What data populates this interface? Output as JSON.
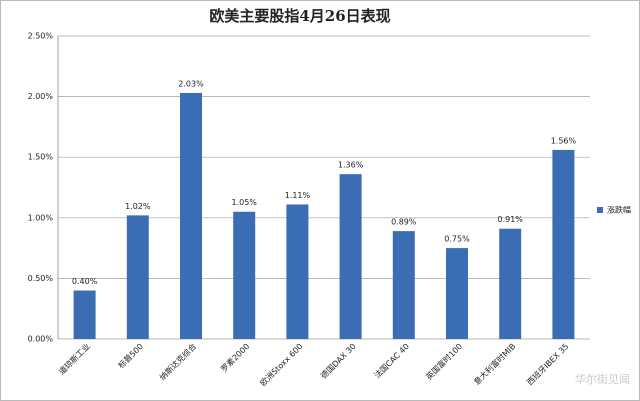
{
  "chart_data": {
    "type": "bar",
    "title": "欧美主要股指4月26日表现",
    "categories": [
      "道琼斯工业",
      "标普500",
      "纳斯达克综合",
      "罗素2000",
      "欧洲Stoxx 600",
      "德国DAX 30",
      "法国CAC 40",
      "英国富时100",
      "意大利富时MIB",
      "西班牙IBEX 35"
    ],
    "series": [
      {
        "name": "涨跌幅",
        "color": "#3a6db3",
        "values": [
          0.4,
          1.02,
          2.03,
          1.05,
          1.11,
          1.36,
          0.89,
          0.75,
          0.91,
          1.56
        ],
        "value_labels": [
          "0.40%",
          "1.02%",
          "2.03%",
          "1.05%",
          "1.11%",
          "1.36%",
          "0.89%",
          "0.75%",
          "0.91%",
          "1.56%"
        ]
      }
    ],
    "ylim": [
      0,
      2.5
    ],
    "yticks": [
      {
        "value": 0,
        "label": "0.00%"
      },
      {
        "value": 0.5,
        "label": "0.50%"
      },
      {
        "value": 1,
        "label": "1.00%"
      },
      {
        "value": 1.5,
        "label": "1.50%"
      },
      {
        "value": 2,
        "label": "2.00%"
      },
      {
        "value": 2.5,
        "label": "2.50%"
      }
    ],
    "grid": true,
    "legend": "right",
    "watermark": "华尔街见闻"
  }
}
